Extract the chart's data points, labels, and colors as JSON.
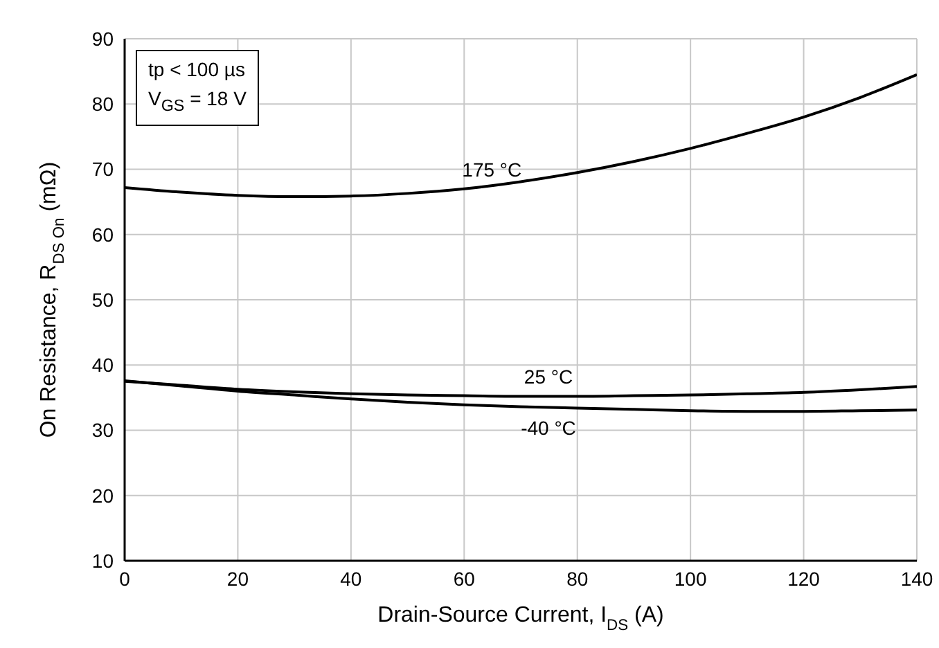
{
  "chart_data": {
    "type": "line",
    "xlabel": "Drain-Source Current, I$_{DS}$ (A)",
    "ylabel": "On Resistance, R$_{DS On}$ (mΩ)",
    "annotations": [
      "tp < 100 µs",
      "V$_{GS}$ = 18 V"
    ],
    "x": [
      0,
      10,
      20,
      30,
      40,
      50,
      60,
      70,
      80,
      90,
      100,
      110,
      120,
      130,
      140
    ],
    "series": [
      {
        "name": "175 °C",
        "color": "#000000",
        "values": [
          67.2,
          66.5,
          66,
          65.8,
          65.9,
          66.3,
          67,
          68.1,
          69.5,
          71.2,
          73.2,
          75.5,
          78,
          81,
          84.5
        ]
      },
      {
        "name": "25 °C",
        "color": "#000000",
        "values": [
          37.5,
          36.9,
          36.3,
          35.9,
          35.6,
          35.4,
          35.3,
          35.2,
          35.2,
          35.3,
          35.4,
          35.6,
          35.8,
          36.2,
          36.7
        ]
      },
      {
        "name": "-40 °C",
        "color": "#000000",
        "values": [
          37.6,
          36.8,
          36,
          35.4,
          34.8,
          34.3,
          33.9,
          33.6,
          33.4,
          33.2,
          33,
          32.9,
          32.9,
          33,
          33.1
        ]
      }
    ],
    "xlim": [
      0,
      140
    ],
    "xticks": [
      0,
      20,
      40,
      60,
      80,
      100,
      120,
      140
    ],
    "ylim": [
      10,
      90
    ],
    "yticks": [
      10,
      20,
      30,
      40,
      50,
      60,
      70,
      80,
      90
    ],
    "grid": true,
    "legend": false,
    "marker": "none",
    "line_style": "solid"
  }
}
